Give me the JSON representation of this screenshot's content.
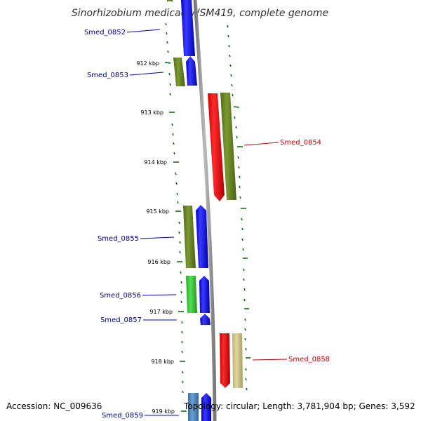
{
  "title": "Sinorhizobium medicae WSM419, complete genome",
  "colors": {
    "cds_forward": "#0000ff",
    "cds_reverse": "#ff0000",
    "cog_olive": "#6b8e23",
    "cog_green": "#33cc33",
    "cog_khaki": "#cdc58a",
    "cog_steel": "#4682b4",
    "backbone": "#888888",
    "tick": "#006400",
    "label_forward": "#00008b",
    "label_reverse": "#cc0000"
  },
  "kbp_labels": [
    "912 kbp",
    "913 kbp",
    "914 kbp",
    "915 kbp",
    "916 kbp",
    "917 kbp",
    "918 kbp",
    "919 kbp"
  ],
  "gene_labels": [
    {
      "name": "Smed_0852",
      "strand": "forward"
    },
    {
      "name": "Smed_0853",
      "strand": "forward"
    },
    {
      "name": "Smed_0854",
      "strand": "reverse"
    },
    {
      "name": "Smed_0855",
      "strand": "forward"
    },
    {
      "name": "Smed_0856",
      "strand": "forward"
    },
    {
      "name": "Smed_0857",
      "strand": "forward"
    },
    {
      "name": "Smed_0858",
      "strand": "reverse"
    },
    {
      "name": "Smed_0859",
      "strand": "forward"
    }
  ],
  "footer": {
    "accession": "Accession: NC_009636",
    "summary": "Topology: circular; Length: 3,781,904 bp; Genes: 3,592"
  }
}
